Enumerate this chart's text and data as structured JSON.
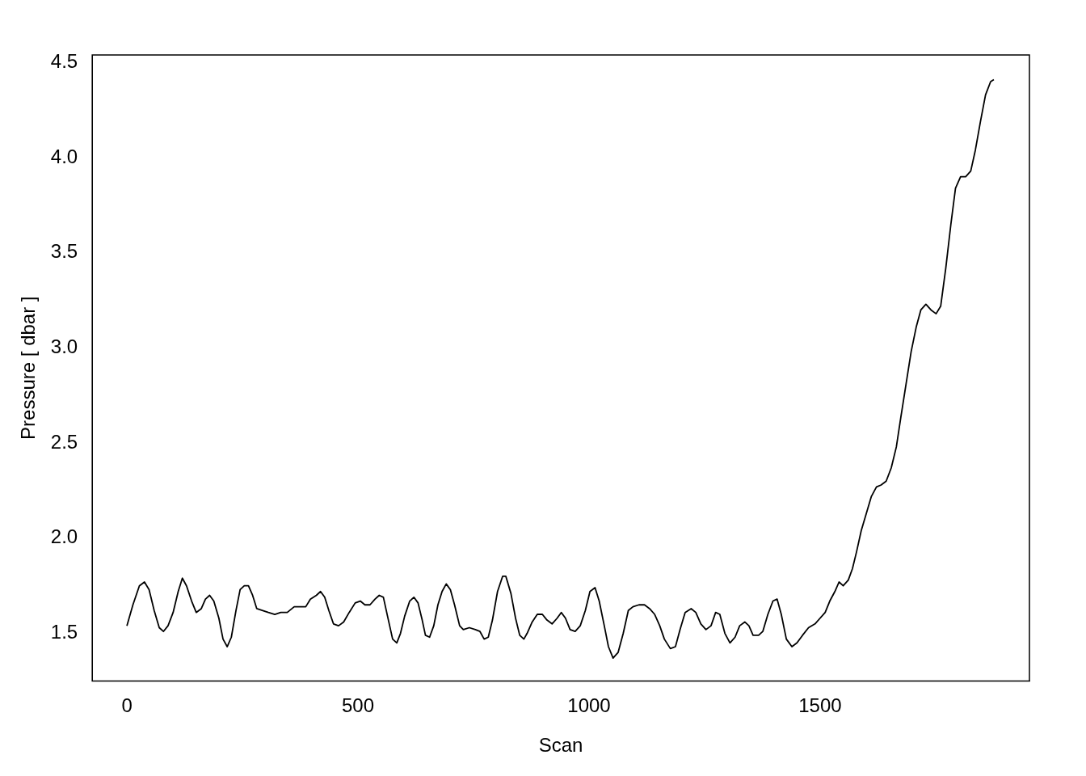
{
  "chart_data": {
    "type": "line",
    "xlabel": "Scan",
    "ylabel": "Pressure [ dbar ]",
    "xlim": [
      -75,
      1953
    ],
    "ylim": [
      1.25,
      4.54
    ],
    "xticks": [
      0,
      500,
      1000,
      1500
    ],
    "yticks": [
      1.5,
      {
        "value": 2,
        "label": "2.0"
      },
      2.5,
      {
        "value": 3,
        "label": "3.0"
      },
      3.5,
      {
        "value": 4,
        "label": "4.0"
      },
      4.5
    ],
    "grid": false,
    "legend": false,
    "marker": "none",
    "line_style": "solid",
    "series": [
      {
        "color": "#000000",
        "x": [
          0,
          13,
          27,
          38,
          48,
          59,
          70,
          79,
          89,
          100,
          111,
          120,
          129,
          140,
          150,
          161,
          170,
          179,
          188,
          199,
          208,
          217,
          226,
          236,
          245,
          254,
          263,
          272,
          281,
          294,
          306,
          320,
          333,
          347,
          362,
          374,
          387,
          397,
          410,
          419,
          428,
          437,
          447,
          458,
          469,
          481,
          494,
          505,
          515,
          526,
          537,
          546,
          555,
          564,
          575,
          584,
          592,
          601,
          612,
          621,
          630,
          639,
          646,
          655,
          664,
          673,
          682,
          691,
          700,
          709,
          720,
          728,
          741,
          754,
          764,
          773,
          782,
          791,
          802,
          813,
          820,
          831,
          841,
          850,
          859,
          866,
          877,
          888,
          899,
          909,
          920,
          931,
          940,
          949,
          959,
          970,
          981,
          992,
          1002,
          1013,
          1022,
          1033,
          1042,
          1052,
          1063,
          1074,
          1085,
          1095,
          1108,
          1120,
          1131,
          1142,
          1153,
          1163,
          1176,
          1187,
          1197,
          1208,
          1221,
          1231,
          1242,
          1253,
          1264,
          1274,
          1283,
          1294,
          1305,
          1316,
          1326,
          1337,
          1346,
          1355,
          1367,
          1376,
          1387,
          1398,
          1407,
          1416,
          1427,
          1439,
          1450,
          1462,
          1475,
          1489,
          1500,
          1511,
          1521,
          1532,
          1541,
          1550,
          1561,
          1570,
          1579,
          1589,
          1600,
          1611,
          1622,
          1632,
          1643,
          1654,
          1665,
          1675,
          1686,
          1697,
          1708,
          1718,
          1729,
          1740,
          1751,
          1761,
          1772,
          1783,
          1793,
          1804,
          1815,
          1826,
          1836,
          1847,
          1858,
          1869,
          1876
        ],
        "values": [
          1.54,
          1.65,
          1.75,
          1.77,
          1.73,
          1.62,
          1.53,
          1.51,
          1.54,
          1.61,
          1.72,
          1.79,
          1.75,
          1.67,
          1.61,
          1.63,
          1.68,
          1.7,
          1.67,
          1.58,
          1.47,
          1.43,
          1.48,
          1.62,
          1.73,
          1.75,
          1.75,
          1.7,
          1.63,
          1.62,
          1.61,
          1.6,
          1.61,
          1.61,
          1.64,
          1.64,
          1.64,
          1.68,
          1.7,
          1.72,
          1.69,
          1.62,
          1.55,
          1.54,
          1.56,
          1.61,
          1.66,
          1.67,
          1.65,
          1.65,
          1.68,
          1.7,
          1.69,
          1.59,
          1.47,
          1.45,
          1.5,
          1.59,
          1.67,
          1.69,
          1.66,
          1.57,
          1.49,
          1.48,
          1.54,
          1.65,
          1.72,
          1.76,
          1.73,
          1.65,
          1.54,
          1.52,
          1.53,
          1.52,
          1.51,
          1.47,
          1.48,
          1.57,
          1.72,
          1.8,
          1.8,
          1.71,
          1.58,
          1.49,
          1.47,
          1.5,
          1.56,
          1.6,
          1.6,
          1.57,
          1.55,
          1.58,
          1.61,
          1.58,
          1.52,
          1.51,
          1.54,
          1.62,
          1.72,
          1.74,
          1.67,
          1.54,
          1.43,
          1.37,
          1.4,
          1.5,
          1.62,
          1.64,
          1.65,
          1.65,
          1.63,
          1.6,
          1.54,
          1.47,
          1.42,
          1.43,
          1.52,
          1.61,
          1.63,
          1.61,
          1.55,
          1.52,
          1.54,
          1.61,
          1.6,
          1.5,
          1.45,
          1.48,
          1.54,
          1.56,
          1.54,
          1.49,
          1.49,
          1.51,
          1.6,
          1.67,
          1.68,
          1.6,
          1.47,
          1.43,
          1.45,
          1.49,
          1.53,
          1.55,
          1.58,
          1.61,
          1.67,
          1.72,
          1.77,
          1.75,
          1.78,
          1.84,
          1.93,
          2.04,
          2.13,
          2.22,
          2.27,
          2.28,
          2.3,
          2.37,
          2.48,
          2.64,
          2.81,
          2.98,
          3.11,
          3.2,
          3.23,
          3.2,
          3.18,
          3.22,
          3.42,
          3.65,
          3.84,
          3.9,
          3.9,
          3.93,
          4.04,
          4.19,
          4.33,
          4.4,
          4.41
        ]
      }
    ]
  }
}
